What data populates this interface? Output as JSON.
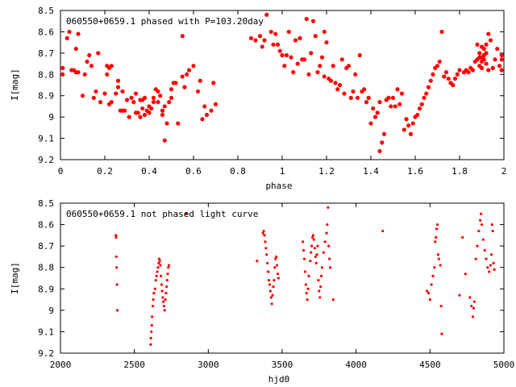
{
  "chart_data": [
    {
      "type": "scatter",
      "title": "060550+0659.1 phased with P=103.20day",
      "xlabel": "phase",
      "ylabel": "I[mag]",
      "xlim": [
        0,
        2
      ],
      "ylim": [
        9.2,
        8.5
      ],
      "y_inverted": true,
      "xticks": [
        "0",
        "0.2",
        "0.4",
        "0.6",
        "0.8",
        "1",
        "1.2",
        "1.4",
        "1.6",
        "1.8",
        "2"
      ],
      "yticks": [
        "8.5",
        "8.6",
        "8.7",
        "8.8",
        "8.9",
        "9",
        "9.1",
        "9.2"
      ],
      "color": "#ff0000",
      "marker": "filled-circle",
      "points": [
        [
          0.01,
          8.77
        ],
        [
          0.01,
          8.8
        ],
        [
          0.03,
          8.63
        ],
        [
          0.04,
          8.6
        ],
        [
          0.05,
          8.78
        ],
        [
          0.06,
          8.78
        ],
        [
          0.07,
          8.79
        ],
        [
          0.07,
          8.68
        ],
        [
          0.08,
          8.79
        ],
        [
          0.08,
          8.61
        ],
        [
          0.1,
          8.9
        ],
        [
          0.11,
          8.8
        ],
        [
          0.12,
          8.74
        ],
        [
          0.13,
          8.71
        ],
        [
          0.14,
          8.76
        ],
        [
          0.15,
          8.91
        ],
        [
          0.16,
          8.88
        ],
        [
          0.18,
          8.93
        ],
        [
          0.17,
          8.7
        ],
        [
          0.2,
          8.89
        ],
        [
          0.21,
          8.8
        ],
        [
          0.21,
          8.76
        ],
        [
          0.22,
          8.94
        ],
        [
          0.22,
          8.77
        ],
        [
          0.23,
          8.93
        ],
        [
          0.23,
          8.76
        ],
        [
          0.25,
          8.89
        ],
        [
          0.26,
          8.86
        ],
        [
          0.26,
          8.83
        ],
        [
          0.27,
          8.97
        ],
        [
          0.28,
          8.97
        ],
        [
          0.28,
          8.88
        ],
        [
          0.29,
          8.97
        ],
        [
          0.3,
          8.92
        ],
        [
          0.31,
          9.0
        ],
        [
          0.32,
          8.91
        ],
        [
          0.33,
          8.93
        ],
        [
          0.34,
          8.89
        ],
        [
          0.34,
          8.98
        ],
        [
          0.35,
          8.98
        ],
        [
          0.36,
          9.0
        ],
        [
          0.36,
          8.92
        ],
        [
          0.37,
          8.92
        ],
        [
          0.37,
          8.96
        ],
        [
          0.38,
          8.99
        ],
        [
          0.38,
          8.91
        ],
        [
          0.39,
          8.97
        ],
        [
          0.4,
          8.95
        ],
        [
          0.4,
          8.98
        ],
        [
          0.41,
          8.96
        ],
        [
          0.42,
          8.91
        ],
        [
          0.42,
          8.93
        ],
        [
          0.43,
          8.87
        ],
        [
          0.44,
          8.88
        ],
        [
          0.44,
          8.93
        ],
        [
          0.45,
          8.9
        ],
        [
          0.46,
          8.99
        ],
        [
          0.46,
          8.97
        ],
        [
          0.47,
          8.95
        ],
        [
          0.47,
          9.11
        ],
        [
          0.48,
          9.03
        ],
        [
          0.49,
          8.93
        ],
        [
          0.5,
          8.91
        ],
        [
          0.5,
          8.87
        ],
        [
          0.51,
          8.84
        ],
        [
          0.52,
          8.84
        ],
        [
          0.53,
          9.03
        ],
        [
          0.55,
          8.81
        ],
        [
          0.56,
          8.86
        ],
        [
          0.57,
          8.8
        ],
        [
          0.58,
          8.78
        ],
        [
          0.6,
          8.76
        ],
        [
          0.62,
          8.88
        ],
        [
          0.63,
          8.83
        ],
        [
          0.64,
          9.01
        ],
        [
          0.65,
          8.95
        ],
        [
          0.66,
          8.99
        ],
        [
          0.68,
          8.97
        ],
        [
          0.69,
          8.84
        ],
        [
          0.7,
          8.94
        ],
        [
          0.55,
          8.62
        ],
        [
          0.86,
          8.63
        ],
        [
          0.88,
          8.64
        ],
        [
          0.9,
          8.62
        ],
        [
          0.91,
          8.67
        ],
        [
          0.92,
          8.64
        ],
        [
          0.93,
          8.52
        ],
        [
          0.95,
          8.6
        ],
        [
          0.96,
          8.66
        ],
        [
          0.97,
          8.61
        ],
        [
          0.98,
          8.66
        ],
        [
          0.99,
          8.69
        ],
        [
          1.0,
          8.71
        ],
        [
          1.01,
          8.76
        ],
        [
          1.02,
          8.71
        ],
        [
          1.03,
          8.6
        ],
        [
          1.04,
          8.72
        ],
        [
          1.05,
          8.79
        ],
        [
          1.06,
          8.64
        ],
        [
          1.07,
          8.75
        ],
        [
          1.08,
          8.63
        ],
        [
          1.09,
          8.73
        ],
        [
          1.1,
          8.73
        ],
        [
          1.11,
          8.54
        ],
        [
          1.12,
          8.8
        ],
        [
          1.13,
          8.7
        ],
        [
          1.14,
          8.55
        ],
        [
          1.15,
          8.62
        ],
        [
          1.16,
          8.79
        ],
        [
          1.17,
          8.76
        ],
        [
          1.18,
          8.72
        ],
        [
          1.19,
          8.81
        ],
        [
          1.19,
          8.6
        ],
        [
          1.2,
          8.65
        ],
        [
          1.21,
          8.82
        ],
        [
          1.22,
          8.83
        ],
        [
          1.23,
          8.76
        ],
        [
          1.24,
          8.84
        ],
        [
          1.25,
          8.87
        ],
        [
          1.26,
          8.85
        ],
        [
          1.27,
          8.73
        ],
        [
          1.28,
          8.89
        ],
        [
          1.29,
          8.77
        ],
        [
          1.3,
          8.76
        ],
        [
          1.31,
          8.91
        ],
        [
          1.32,
          8.88
        ],
        [
          1.33,
          8.8
        ],
        [
          1.34,
          8.91
        ],
        [
          1.35,
          8.71
        ],
        [
          1.36,
          8.88
        ],
        [
          1.37,
          8.87
        ],
        [
          1.38,
          8.93
        ],
        [
          1.39,
          8.91
        ],
        [
          1.4,
          9.03
        ],
        [
          1.41,
          8.96
        ],
        [
          1.42,
          9.0
        ],
        [
          1.43,
          8.98
        ],
        [
          1.44,
          8.93
        ],
        [
          1.44,
          9.16
        ],
        [
          1.45,
          9.12
        ],
        [
          1.46,
          9.08
        ],
        [
          1.47,
          8.92
        ],
        [
          1.48,
          8.91
        ],
        [
          1.49,
          8.95
        ],
        [
          1.5,
          8.91
        ],
        [
          1.51,
          8.95
        ],
        [
          1.52,
          8.87
        ],
        [
          1.53,
          8.94
        ],
        [
          1.54,
          8.89
        ],
        [
          1.55,
          9.06
        ],
        [
          1.56,
          9.01
        ],
        [
          1.57,
          9.04
        ],
        [
          1.58,
          9.08
        ],
        [
          1.59,
          9.03
        ],
        [
          1.6,
          9.0
        ],
        [
          1.61,
          8.99
        ],
        [
          1.62,
          8.96
        ],
        [
          1.63,
          8.94
        ],
        [
          1.64,
          8.91
        ],
        [
          1.65,
          8.89
        ],
        [
          1.66,
          8.86
        ],
        [
          1.67,
          8.83
        ],
        [
          1.68,
          8.8
        ],
        [
          1.69,
          8.77
        ],
        [
          1.7,
          8.76
        ],
        [
          1.71,
          8.74
        ],
        [
          1.72,
          8.6
        ],
        [
          1.73,
          8.81
        ],
        [
          1.74,
          8.79
        ],
        [
          1.75,
          8.82
        ],
        [
          1.76,
          8.84
        ],
        [
          1.77,
          8.85
        ],
        [
          1.78,
          8.82
        ],
        [
          1.79,
          8.8
        ],
        [
          1.8,
          8.78
        ],
        [
          1.82,
          8.79
        ],
        [
          1.83,
          8.78
        ],
        [
          1.84,
          8.79
        ],
        [
          1.85,
          8.77
        ],
        [
          1.86,
          8.78
        ],
        [
          1.87,
          8.74
        ],
        [
          1.88,
          8.66
        ],
        [
          1.88,
          8.73
        ],
        [
          1.89,
          8.72
        ],
        [
          1.89,
          8.7
        ],
        [
          1.89,
          8.76
        ],
        [
          1.9,
          8.67
        ],
        [
          1.9,
          8.72
        ],
        [
          1.9,
          8.77
        ],
        [
          1.9,
          8.74
        ],
        [
          1.91,
          8.71
        ],
        [
          1.91,
          8.68
        ],
        [
          1.91,
          8.73
        ],
        [
          1.92,
          8.75
        ],
        [
          1.92,
          8.66
        ],
        [
          1.92,
          8.7
        ],
        [
          1.93,
          8.61
        ],
        [
          1.93,
          8.78
        ],
        [
          1.94,
          8.64
        ],
        [
          1.95,
          8.77
        ],
        [
          1.96,
          8.73
        ],
        [
          1.97,
          8.68
        ],
        [
          1.98,
          8.76
        ],
        [
          1.99,
          8.71
        ],
        [
          1.99,
          8.73
        ],
        [
          1.99,
          8.78
        ]
      ]
    },
    {
      "type": "scatter",
      "title": "060550+0659.1 not phased light curve",
      "xlabel": "hjd0",
      "ylabel": "I[mag]",
      "xlim": [
        2000,
        5000
      ],
      "ylim": [
        9.2,
        8.5
      ],
      "y_inverted": true,
      "xticks": [
        "2000",
        "2500",
        "3000",
        "3500",
        "4000",
        "4500",
        "5000"
      ],
      "yticks": [
        "8.5",
        "8.6",
        "8.7",
        "8.8",
        "8.9",
        "9",
        "9.1",
        "9.2"
      ],
      "color": "#ff0000",
      "marker": "filled-circle",
      "points": [
        [
          2375,
          8.65
        ],
        [
          2376,
          8.66
        ],
        [
          2378,
          8.75
        ],
        [
          2380,
          8.8
        ],
        [
          2382,
          8.88
        ],
        [
          2385,
          9.0
        ],
        [
          2610,
          9.16
        ],
        [
          2612,
          9.13
        ],
        [
          2615,
          9.1
        ],
        [
          2618,
          9.07
        ],
        [
          2620,
          9.03
        ],
        [
          2625,
          8.98
        ],
        [
          2628,
          8.95
        ],
        [
          2632,
          8.92
        ],
        [
          2640,
          8.9
        ],
        [
          2645,
          8.86
        ],
        [
          2650,
          8.84
        ],
        [
          2655,
          8.82
        ],
        [
          2660,
          8.8
        ],
        [
          2665,
          8.78
        ],
        [
          2668,
          8.76
        ],
        [
          2672,
          8.77
        ],
        [
          2676,
          8.79
        ],
        [
          2680,
          8.84
        ],
        [
          2684,
          8.88
        ],
        [
          2688,
          8.91
        ],
        [
          2692,
          8.94
        ],
        [
          2696,
          8.96
        ],
        [
          2700,
          8.98
        ],
        [
          2705,
          9.0
        ],
        [
          2710,
          8.95
        ],
        [
          2714,
          8.92
        ],
        [
          2718,
          8.89
        ],
        [
          2722,
          8.86
        ],
        [
          2726,
          8.83
        ],
        [
          2730,
          8.8
        ],
        [
          2734,
          8.79
        ],
        [
          2850,
          8.55
        ],
        [
          3330,
          8.77
        ],
        [
          3370,
          8.64
        ],
        [
          3375,
          8.63
        ],
        [
          3380,
          8.65
        ],
        [
          3385,
          8.68
        ],
        [
          3390,
          8.71
        ],
        [
          3395,
          8.74
        ],
        [
          3400,
          8.78
        ],
        [
          3405,
          8.82
        ],
        [
          3410,
          8.86
        ],
        [
          3415,
          8.88
        ],
        [
          3420,
          8.91
        ],
        [
          3425,
          8.94
        ],
        [
          3430,
          8.97
        ],
        [
          3435,
          8.93
        ],
        [
          3440,
          8.89
        ],
        [
          3445,
          8.86
        ],
        [
          3450,
          8.8
        ],
        [
          3455,
          8.76
        ],
        [
          3460,
          8.75
        ],
        [
          3465,
          8.79
        ],
        [
          3470,
          8.83
        ],
        [
          3475,
          8.85
        ],
        [
          3640,
          8.68
        ],
        [
          3645,
          8.72
        ],
        [
          3650,
          8.76
        ],
        [
          3655,
          8.82
        ],
        [
          3660,
          8.88
        ],
        [
          3665,
          8.92
        ],
        [
          3670,
          8.95
        ],
        [
          3675,
          8.9
        ],
        [
          3680,
          8.84
        ],
        [
          3690,
          8.77
        ],
        [
          3695,
          8.73
        ],
        [
          3700,
          8.7
        ],
        [
          3705,
          8.66
        ],
        [
          3710,
          8.65
        ],
        [
          3715,
          8.67
        ],
        [
          3720,
          8.71
        ],
        [
          3725,
          8.75
        ],
        [
          3730,
          8.78
        ],
        [
          3735,
          8.74
        ],
        [
          3740,
          8.7
        ],
        [
          3745,
          8.86
        ],
        [
          3750,
          8.91
        ],
        [
          3755,
          8.94
        ],
        [
          3760,
          8.89
        ],
        [
          3765,
          8.84
        ],
        [
          3770,
          8.8
        ],
        [
          3780,
          8.73
        ],
        [
          3790,
          8.68
        ],
        [
          3800,
          8.64
        ],
        [
          3805,
          8.6
        ],
        [
          3810,
          8.52
        ],
        [
          3815,
          8.7
        ],
        [
          3820,
          8.76
        ],
        [
          3825,
          8.8
        ],
        [
          3845,
          8.95
        ],
        [
          4180,
          8.63
        ],
        [
          4480,
          8.91
        ],
        [
          4490,
          8.92
        ],
        [
          4500,
          8.95
        ],
        [
          4510,
          8.88
        ],
        [
          4520,
          8.84
        ],
        [
          4530,
          8.8
        ],
        [
          4535,
          8.68
        ],
        [
          4540,
          8.66
        ],
        [
          4545,
          8.62
        ],
        [
          4550,
          8.6
        ],
        [
          4555,
          8.74
        ],
        [
          4560,
          8.76
        ],
        [
          4570,
          8.79
        ],
        [
          4575,
          8.98
        ],
        [
          4580,
          9.11
        ],
        [
          4700,
          8.93
        ],
        [
          4720,
          8.66
        ],
        [
          4740,
          8.83
        ],
        [
          4770,
          8.94
        ],
        [
          4780,
          8.98
        ],
        [
          4790,
          9.03
        ],
        [
          4795,
          8.99
        ],
        [
          4800,
          8.96
        ],
        [
          4810,
          8.76
        ],
        [
          4820,
          8.7
        ],
        [
          4830,
          8.63
        ],
        [
          4840,
          8.58
        ],
        [
          4845,
          8.55
        ],
        [
          4850,
          8.6
        ],
        [
          4860,
          8.67
        ],
        [
          4870,
          8.72
        ],
        [
          4880,
          8.76
        ],
        [
          4890,
          8.8
        ],
        [
          4900,
          8.82
        ],
        [
          4910,
          8.79
        ],
        [
          4915,
          8.74
        ],
        [
          4920,
          8.6
        ],
        [
          4925,
          8.63
        ],
        [
          4930,
          8.78
        ],
        [
          4935,
          8.81
        ]
      ]
    }
  ]
}
